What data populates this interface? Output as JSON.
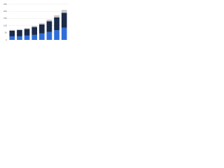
{
  "chart_data": {
    "type": "bar",
    "stacked": true,
    "categories": [
      null,
      null,
      null,
      null,
      null,
      null,
      null,
      null
    ],
    "series": [
      {
        "color": "#2f6ed8",
        "values": [
          25,
          25,
          30,
          35,
          45,
          55,
          68,
          85
        ]
      },
      {
        "color": "#1a2a48",
        "values": [
          40,
          44,
          46,
          55,
          63,
          75,
          90,
          105
        ]
      },
      {
        "color": "#c8c8c8",
        "values": [
          5,
          6,
          7,
          8,
          10,
          12,
          14,
          20
        ]
      }
    ],
    "ylim": [
      0,
      250
    ],
    "yticks": [
      0,
      50,
      100,
      150,
      200,
      250
    ],
    "grid": true
  }
}
